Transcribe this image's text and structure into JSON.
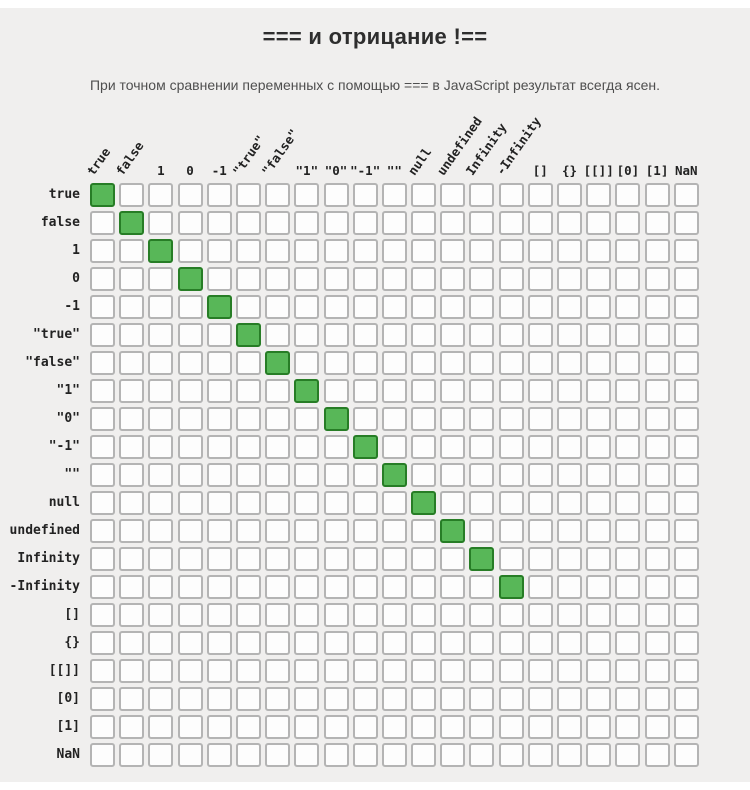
{
  "page": {
    "title": "=== и отрицание !==",
    "subtitle": "При точном сравнении переменных с помощью === в JavaScript результат всегда ясен.",
    "background_color": "#f0efee",
    "title_color": "#2e2e2e",
    "subtitle_color": "#4f4f4f"
  },
  "matrix": {
    "rotated_column_labels": [
      "true",
      "false",
      "\"true\"",
      "\"false\"",
      "null",
      "undefined",
      "Infinity",
      "-Infinity"
    ],
    "colors": {
      "equal_fill": "#58b758",
      "equal_border": "#277d26",
      "cell_fill": "#fdfdfd",
      "cell_border": "#b4b4b4",
      "label_color": "#222222"
    }
  },
  "chart_data": {
    "type": "heatmap",
    "title": "=== и отрицание !==",
    "subtitle": "При точном сравнении переменных с помощью === в JavaScript результат всегда ясен.",
    "x_labels": [
      "true",
      "false",
      "1",
      "0",
      "-1",
      "\"true\"",
      "\"false\"",
      "\"1\"",
      "\"0\"",
      "\"-1\"",
      "\"\"",
      "null",
      "undefined",
      "Infinity",
      "-Infinity",
      "[]",
      "{}",
      "[[]]",
      "[0]",
      "[1]",
      "NaN"
    ],
    "y_labels": [
      "true",
      "false",
      "1",
      "0",
      "-1",
      "\"true\"",
      "\"false\"",
      "\"1\"",
      "\"0\"",
      "\"-1\"",
      "\"\"",
      "null",
      "undefined",
      "Infinity",
      "-Infinity",
      "[]",
      "{}",
      "[[]]",
      "[0]",
      "[1]",
      "NaN"
    ],
    "legend_position": "none",
    "true_color": "#58b758",
    "false_color": "#fdfdfd",
    "true_cells": [
      [
        0,
        0
      ],
      [
        1,
        1
      ],
      [
        2,
        2
      ],
      [
        3,
        3
      ],
      [
        4,
        4
      ],
      [
        5,
        5
      ],
      [
        6,
        6
      ],
      [
        7,
        7
      ],
      [
        8,
        8
      ],
      [
        9,
        9
      ],
      [
        10,
        10
      ],
      [
        11,
        11
      ],
      [
        12,
        12
      ],
      [
        13,
        13
      ],
      [
        14,
        14
      ]
    ]
  }
}
